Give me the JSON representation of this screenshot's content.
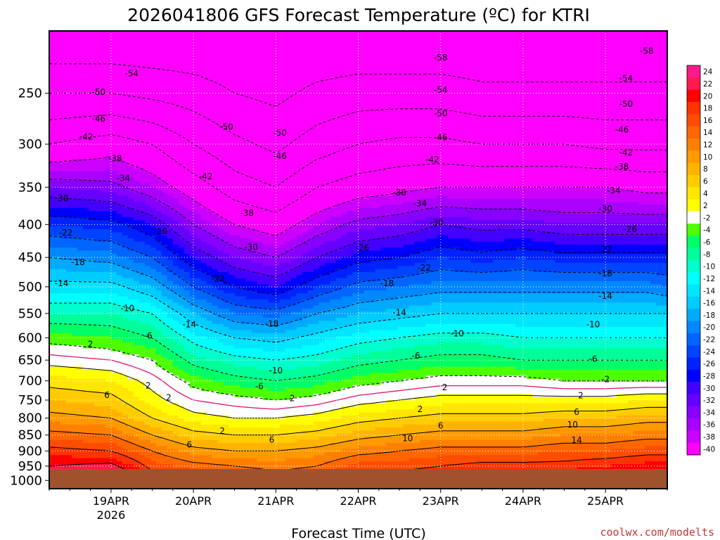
{
  "chart_data": {
    "type": "heatmap",
    "title": "2026041806 GFS Forecast Temperature (ºC) for KTRI",
    "xlabel": "Forecast Time (UTC)",
    "ylabel": "",
    "credit": "coolwx.com/modelts",
    "y_scale": "log-pressure",
    "y_axis_ticks": [
      "250",
      "300",
      "350",
      "400",
      "450",
      "500",
      "550",
      "600",
      "650",
      "700",
      "750",
      "800",
      "850",
      "900",
      "950",
      "1000"
    ],
    "y_range_hPa": [
      200,
      1030
    ],
    "x_axis_ticks": [
      {
        "label": "19APR",
        "sublabel": "2026"
      },
      {
        "label": "20APR",
        "sublabel": ""
      },
      {
        "label": "21APR",
        "sublabel": ""
      },
      {
        "label": "22APR",
        "sublabel": ""
      },
      {
        "label": "23APR",
        "sublabel": ""
      },
      {
        "label": "24APR",
        "sublabel": ""
      },
      {
        "label": "25APR",
        "sublabel": ""
      }
    ],
    "x_range_days_from_19APR": [
      -0.75,
      6.75
    ],
    "surface_pressure_hPa": 960,
    "colorbar_levels": [
      "24",
      "22",
      "20",
      "18",
      "16",
      "14",
      "12",
      "10",
      "8",
      "6",
      "4",
      "2",
      "-2",
      "-4",
      "-6",
      "-8",
      "-10",
      "-12",
      "-14",
      "-16",
      "-18",
      "-20",
      "-22",
      "-24",
      "-26",
      "-28",
      "-30",
      "-32",
      "-34",
      "-36",
      "-38",
      "-40"
    ],
    "colorbar_colors": [
      "#ff1a8c",
      "#ff1a4d",
      "#ff0000",
      "#ff3300",
      "#ff4d00",
      "#ff6600",
      "#ff8000",
      "#ff9900",
      "#ffb300",
      "#ffcc00",
      "#ffe600",
      "#ffff00",
      "#ffffff",
      "#4dff00",
      "#00ff66",
      "#00ff99",
      "#00ffcc",
      "#00ffff",
      "#00e6ff",
      "#00ccff",
      "#00aaff",
      "#0088ff",
      "#0066ff",
      "#0044ff",
      "#0022ff",
      "#0000ff",
      "#4400ff",
      "#6600ff",
      "#8800ff",
      "#aa00ff",
      "#cc00ff",
      "#ff00ff"
    ],
    "temperature_profile": {
      "pressure_levels_hPa": [
        200,
        250,
        300,
        350,
        400,
        450,
        500,
        550,
        600,
        650,
        700,
        750,
        800,
        850,
        900,
        950
      ],
      "series": [
        {
          "time": "18APR 18Z",
          "day": -0.75,
          "values": [
            -58,
            -50,
            -42,
            -32,
            -24,
            -18,
            -13,
            -8,
            -3,
            1,
            5,
            8,
            11,
            15,
            19,
            22
          ]
        },
        {
          "time": "19APR 00Z",
          "day": 0.0,
          "values": [
            -58,
            -50,
            -40,
            -33,
            -25,
            -19,
            -13,
            -8,
            -4,
            0,
            4,
            7,
            10,
            14,
            18,
            23
          ]
        },
        {
          "time": "19APR 12Z",
          "day": 0.5,
          "values": [
            -58,
            -51,
            -42,
            -36,
            -28,
            -22,
            -16,
            -10,
            -6,
            -2,
            1,
            3,
            6,
            10,
            14,
            17
          ]
        },
        {
          "time": "20APR 00Z",
          "day": 1.0,
          "values": [
            -58,
            -52,
            -46,
            -40,
            -34,
            -28,
            -22,
            -16,
            -11,
            -7,
            -3,
            0,
            3,
            7,
            11,
            15
          ]
        },
        {
          "time": "20APR 12Z",
          "day": 1.5,
          "values": [
            -58,
            -54,
            -49,
            -44,
            -38,
            -32,
            -26,
            -20,
            -14,
            -9,
            -5,
            -1,
            2,
            6,
            10,
            14
          ]
        },
        {
          "time": "21APR 00Z",
          "day": 2.0,
          "values": [
            -58,
            -55,
            -51,
            -46,
            -40,
            -34,
            -28,
            -21,
            -15,
            -10,
            -6,
            -2,
            2,
            6,
            10,
            13
          ]
        },
        {
          "time": "21APR 12Z",
          "day": 2.5,
          "values": [
            -58,
            -53,
            -48,
            -42,
            -36,
            -30,
            -24,
            -18,
            -13,
            -9,
            -5,
            -1,
            3,
            7,
            11,
            14
          ]
        },
        {
          "time": "22APR 00Z",
          "day": 3.0,
          "values": [
            -58,
            -52,
            -46,
            -40,
            -33,
            -27,
            -21,
            -16,
            -11,
            -7,
            -3,
            1,
            5,
            9,
            13,
            17
          ]
        },
        {
          "time": "22APR 12Z",
          "day": 3.5,
          "values": [
            -58,
            -52,
            -45,
            -39,
            -32,
            -26,
            -20,
            -15,
            -10,
            -6,
            -2,
            2,
            6,
            10,
            14,
            17
          ]
        },
        {
          "time": "23APR 00Z",
          "day": 4.0,
          "values": [
            -58,
            -52,
            -45,
            -38,
            -30,
            -24,
            -19,
            -14,
            -9,
            -5,
            -1,
            3,
            7,
            11,
            15,
            18
          ]
        },
        {
          "time": "23APR 12Z",
          "day": 4.5,
          "values": [
            -58,
            -53,
            -46,
            -38,
            -31,
            -25,
            -19,
            -14,
            -9,
            -5,
            -1,
            3,
            7,
            11,
            15,
            19
          ]
        },
        {
          "time": "24APR 00Z",
          "day": 5.0,
          "values": [
            -58,
            -53,
            -46,
            -38,
            -31,
            -24,
            -19,
            -14,
            -10,
            -6,
            -1,
            3,
            7,
            11,
            15,
            19
          ]
        },
        {
          "time": "24APR 12Z",
          "day": 5.5,
          "values": [
            -58,
            -53,
            -46,
            -38,
            -32,
            -25,
            -19,
            -14,
            -10,
            -6,
            -2,
            3,
            8,
            12,
            16,
            19
          ]
        },
        {
          "time": "25APR 00Z",
          "day": 6.0,
          "values": [
            -58,
            -53,
            -47,
            -38,
            -32,
            -25,
            -19,
            -14,
            -10,
            -6,
            -2,
            3,
            8,
            12,
            16,
            20
          ]
        },
        {
          "time": "25APR 12Z",
          "day": 6.5,
          "values": [
            -58,
            -53,
            -47,
            -39,
            -32,
            -25,
            -19,
            -14,
            -10,
            -6,
            -2,
            4,
            9,
            13,
            17,
            21
          ]
        },
        {
          "time": "25APR 18Z",
          "day": 6.75,
          "values": [
            -58,
            -53,
            -47,
            -39,
            -32,
            -25,
            -20,
            -14,
            -10,
            -6,
            -2,
            4,
            9,
            13,
            17,
            21
          ]
        }
      ]
    },
    "contour_labels": [
      {
        "text": "-58",
        "day": 4.0,
        "p": 220
      },
      {
        "text": "-58",
        "day": 6.5,
        "p": 215
      },
      {
        "text": "-54",
        "day": 0.25,
        "p": 233
      },
      {
        "text": "-54",
        "day": 4.0,
        "p": 247
      },
      {
        "text": "-54",
        "day": 6.25,
        "p": 237
      },
      {
        "text": "-50",
        "day": -0.15,
        "p": 249
      },
      {
        "text": "-50",
        "day": 1.4,
        "p": 282
      },
      {
        "text": "-50",
        "day": 2.05,
        "p": 288
      },
      {
        "text": "-50",
        "day": 4.0,
        "p": 269
      },
      {
        "text": "-50",
        "day": 6.25,
        "p": 260
      },
      {
        "text": "-46",
        "day": -0.15,
        "p": 274
      },
      {
        "text": "-46",
        "day": 2.05,
        "p": 313
      },
      {
        "text": "-46",
        "day": 4.0,
        "p": 293
      },
      {
        "text": "-46",
        "day": 6.2,
        "p": 285
      },
      {
        "text": "-42",
        "day": -0.3,
        "p": 292
      },
      {
        "text": "-42",
        "day": 1.15,
        "p": 337
      },
      {
        "text": "-42",
        "day": 3.9,
        "p": 317
      },
      {
        "text": "-42",
        "day": 6.25,
        "p": 309
      },
      {
        "text": "-38",
        "day": 0.05,
        "p": 316
      },
      {
        "text": "-38",
        "day": 1.65,
        "p": 384
      },
      {
        "text": "-38",
        "day": 3.5,
        "p": 357
      },
      {
        "text": "-38",
        "day": 6.2,
        "p": 325
      },
      {
        "text": "-34",
        "day": 0.15,
        "p": 339
      },
      {
        "text": "-34",
        "day": 3.75,
        "p": 371
      },
      {
        "text": "-34",
        "day": 6.1,
        "p": 354
      },
      {
        "text": "-30",
        "day": -0.6,
        "p": 364
      },
      {
        "text": "-30",
        "day": 1.7,
        "p": 434
      },
      {
        "text": "-30",
        "day": 3.95,
        "p": 397
      },
      {
        "text": "-30",
        "day": 6.0,
        "p": 378
      },
      {
        "text": "-26",
        "day": 0.6,
        "p": 410
      },
      {
        "text": "-26",
        "day": 3.05,
        "p": 435
      },
      {
        "text": "-26",
        "day": 6.3,
        "p": 407
      },
      {
        "text": "-22",
        "day": -0.55,
        "p": 412
      },
      {
        "text": "-22",
        "day": 1.3,
        "p": 486
      },
      {
        "text": "-22",
        "day": 3.8,
        "p": 467
      },
      {
        "text": "-22",
        "day": 6.0,
        "p": 437
      },
      {
        "text": "-18",
        "day": -0.4,
        "p": 458
      },
      {
        "text": "-18",
        "day": 1.95,
        "p": 571
      },
      {
        "text": "-18",
        "day": 3.35,
        "p": 494
      },
      {
        "text": "-18",
        "day": 6.0,
        "p": 477
      },
      {
        "text": "-14",
        "day": -0.6,
        "p": 494
      },
      {
        "text": "-14",
        "day": 0.95,
        "p": 572
      },
      {
        "text": "-14",
        "day": 3.5,
        "p": 548
      },
      {
        "text": "-14",
        "day": 6.0,
        "p": 517
      },
      {
        "text": "-10",
        "day": 0.2,
        "p": 540
      },
      {
        "text": "-10",
        "day": 2.0,
        "p": 675
      },
      {
        "text": "-10",
        "day": 4.2,
        "p": 591
      },
      {
        "text": "-10",
        "day": 5.85,
        "p": 572
      },
      {
        "text": "-6",
        "day": 0.45,
        "p": 596
      },
      {
        "text": "-6",
        "day": 1.8,
        "p": 714
      },
      {
        "text": "-6",
        "day": 3.7,
        "p": 640
      },
      {
        "text": "-6",
        "day": 5.85,
        "p": 647
      },
      {
        "text": "-2",
        "day": 6.0,
        "p": 696
      },
      {
        "text": "2",
        "day": -0.25,
        "p": 614
      },
      {
        "text": "2",
        "day": 0.45,
        "p": 712
      },
      {
        "text": "2",
        "day": 0.7,
        "p": 743
      },
      {
        "text": "2",
        "day": 1.35,
        "p": 838
      },
      {
        "text": "2",
        "day": 2.2,
        "p": 745
      },
      {
        "text": "2",
        "day": 3.75,
        "p": 775
      },
      {
        "text": "2",
        "day": 4.05,
        "p": 717
      },
      {
        "text": "2",
        "day": 5.7,
        "p": 738
      },
      {
        "text": "6",
        "day": -0.05,
        "p": 737
      },
      {
        "text": "6",
        "day": 0.95,
        "p": 880
      },
      {
        "text": "6",
        "day": 1.95,
        "p": 865
      },
      {
        "text": "6",
        "day": 4.0,
        "p": 822
      },
      {
        "text": "6",
        "day": 5.65,
        "p": 783
      },
      {
        "text": "10",
        "day": 3.6,
        "p": 860
      },
      {
        "text": "10",
        "day": 5.6,
        "p": 819
      },
      {
        "text": "14",
        "day": 5.65,
        "p": 866
      }
    ]
  }
}
